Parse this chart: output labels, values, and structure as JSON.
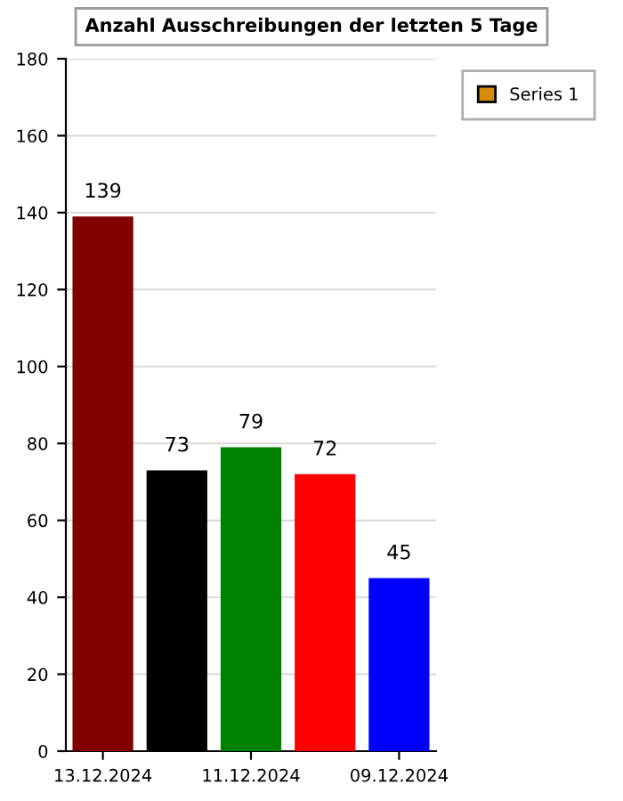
{
  "chart_data": {
    "type": "bar",
    "title": "Anzahl Ausschreibungen der letzten 5 Tage",
    "categories": [
      "13.12.2024",
      null,
      "11.12.2024",
      null,
      "09.12.2024"
    ],
    "series": [
      {
        "name": "Series 1",
        "color": "#d98c0c",
        "colors": [
          "#800000",
          "#000000",
          "#008000",
          "#ff0000",
          "#0000ff"
        ],
        "values": [
          139,
          73,
          79,
          72,
          45
        ]
      }
    ],
    "ylim": [
      0,
      180
    ],
    "yticks": [
      0,
      20,
      40,
      60,
      80,
      100,
      120,
      140,
      160,
      180
    ],
    "grid": "y",
    "legend": "top right",
    "data_labels": true
  }
}
